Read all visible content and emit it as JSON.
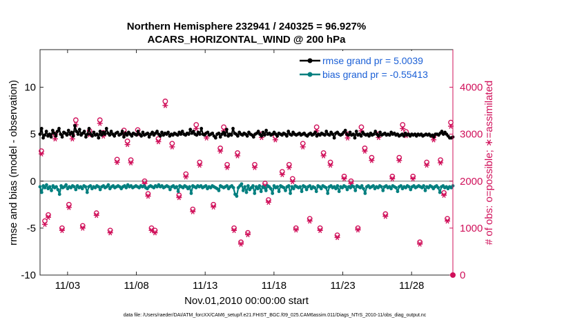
{
  "figure": {
    "title_line1": "Northern Hemisphere 232941 / 240325 = 96.927%",
    "title_line2": "ACARS_HORIZONTAL_WIND @ 200 hPa",
    "xlabel": "Nov.01,2010 00:00:00 start",
    "ylabel_left": "rmse and bias (model - observation)",
    "ylabel_right": "# of obs: o=possible; ∗=assimilated",
    "footer": "data file: /Users/raeder/DAI/ATM_forcXX/CAM6_setup/f.e21.FHIST_BGC.f09_025.CAM6assim.011/Diags_NTrS_2010-11/obs_diag_output.nc"
  },
  "colors": {
    "rmse": "#000000",
    "bias": "#007f7f",
    "obs": "#d0105a",
    "legend_text": "#1a5fd6",
    "zero_line": "#b3b3b3",
    "axis": "#262626"
  },
  "chart_data": {
    "type": "line",
    "x_unit": "days since Nov.01,2010 00:00 (6-hourly samples)",
    "xlim": [
      0.0,
      30.0
    ],
    "ylim_left": [
      -10,
      14
    ],
    "ylim_right": [
      0,
      4800
    ],
    "xticks": [
      2,
      7,
      12,
      17,
      22,
      27
    ],
    "xtick_labels": [
      "11/03",
      "11/08",
      "11/13",
      "11/18",
      "11/23",
      "11/28"
    ],
    "yticks_left": [
      -10,
      -5,
      0,
      5,
      10
    ],
    "yticks_left_labels": [
      "-10",
      "-5",
      "0",
      "5",
      "10"
    ],
    "yticks_right": [
      0,
      1000,
      2000,
      3000,
      4000
    ],
    "yticks_right_labels": [
      "0",
      "1000",
      "2000",
      "3000",
      "4000"
    ],
    "legend_location": "top-right",
    "legend": [
      "rmse grand pr = 5.0039",
      "bias grand pr = -0.55413"
    ],
    "series": [
      {
        "name": "rmse grand pr = 5.0039",
        "axis": "left",
        "marker": "filled-circle",
        "values": [
          5.0,
          5.6,
          4.6,
          4.9,
          5.3,
          4.8,
          5.0,
          4.7,
          5.4,
          5.1,
          4.8,
          5.3,
          5.6,
          5.0,
          4.7,
          5.2,
          5.1,
          4.9,
          5.4,
          5.0,
          5.2,
          4.8,
          5.9,
          5.3,
          5.0,
          5.5,
          4.9,
          5.1,
          5.3,
          4.7,
          5.0,
          5.6,
          5.0,
          4.8,
          5.2,
          4.9,
          5.0,
          4.6,
          5.3,
          4.9,
          5.2,
          5.0,
          5.6,
          5.1,
          4.9,
          5.3,
          5.0,
          4.8,
          5.1,
          5.2,
          4.9,
          5.0,
          5.3,
          4.7,
          5.1,
          4.9,
          5.2,
          5.0,
          4.8,
          5.1,
          5.0,
          4.9,
          5.3,
          5.0,
          4.8,
          5.2,
          4.9,
          5.0,
          5.1,
          4.7,
          5.0,
          5.2,
          4.9,
          5.1,
          5.3,
          5.0,
          4.8,
          5.2,
          4.9,
          5.1,
          5.0,
          5.2,
          4.8,
          5.0,
          4.9,
          5.1,
          5.0,
          4.9,
          5.2,
          5.0,
          5.3,
          5.0,
          4.9,
          5.1,
          5.0,
          5.5,
          5.1,
          5.3,
          5.0,
          4.9,
          5.2,
          5.0,
          5.6,
          5.0,
          4.9,
          5.1,
          5.2,
          4.9,
          5.0,
          5.1,
          4.8,
          4.6,
          5.0,
          5.1,
          4.7,
          5.0,
          5.2,
          4.9,
          5.5,
          4.8,
          5.0,
          4.9,
          5.6,
          5.1,
          5.0,
          4.8,
          5.2,
          5.0,
          4.9,
          5.1,
          5.0,
          4.8,
          5.2,
          5.0,
          4.9,
          4.7,
          5.0,
          5.1,
          5.3,
          5.0,
          4.8,
          5.2,
          4.9,
          5.4,
          5.0,
          5.1,
          4.9,
          5.0,
          5.2,
          5.0,
          4.8,
          5.1,
          5.0,
          4.9,
          5.1,
          5.0,
          4.8,
          5.3,
          5.0,
          4.9,
          5.2,
          5.0,
          4.9,
          5.0,
          5.1,
          4.9,
          5.0,
          5.1,
          4.9,
          4.8,
          5.0,
          5.1,
          4.9,
          5.0,
          5.2,
          4.8,
          5.0,
          4.9,
          5.1,
          5.0,
          4.9,
          5.3,
          5.0,
          4.9,
          5.2,
          5.0,
          4.6,
          5.1,
          5.2,
          5.0,
          4.9,
          5.0,
          5.2,
          5.4,
          5.0,
          4.9,
          5.2,
          4.9,
          5.0,
          4.6,
          5.3,
          4.9,
          5.0,
          4.8,
          5.2,
          5.0,
          4.9,
          5.0,
          4.8,
          5.1,
          4.9,
          5.0,
          5.3,
          5.0,
          4.8,
          5.2,
          4.9,
          5.0,
          5.1,
          4.9,
          5.0,
          4.9,
          5.2,
          5.0,
          5.1,
          4.9,
          5.0,
          4.8,
          4.9,
          5.0,
          4.8,
          5.1,
          4.9,
          5.0,
          4.8,
          5.0,
          4.9,
          5.0,
          4.8,
          5.0,
          4.9,
          5.0,
          4.8,
          4.9,
          5.0,
          4.9,
          5.0,
          4.8,
          4.9,
          4.7,
          5.0,
          5.0,
          4.9,
          5.1,
          5.3,
          5.0,
          5.2,
          5.0,
          4.8,
          4.6,
          4.6,
          4.7
        ]
      },
      {
        "name": "bias grand pr = -0.55413",
        "axis": "left",
        "marker": "filled-circle",
        "values": [
          -0.6,
          -1.2,
          -0.5,
          -0.7,
          -0.4,
          -0.8,
          -0.6,
          -1.0,
          -0.5,
          -0.7,
          -0.6,
          -0.9,
          -1.4,
          -0.5,
          -0.7,
          -0.6,
          -0.4,
          -0.8,
          -0.6,
          -0.7,
          -0.5,
          -0.6,
          -0.9,
          -0.5,
          -0.7,
          -0.6,
          -0.8,
          -0.5,
          -0.6,
          -1.2,
          -0.6,
          -0.5,
          -0.8,
          -0.6,
          -0.7,
          -0.5,
          -0.6,
          -0.9,
          -0.6,
          -0.5,
          -0.7,
          -0.6,
          -0.4,
          -0.8,
          -0.6,
          -0.5,
          -0.7,
          -0.6,
          -0.5,
          -0.6,
          -0.8,
          -0.6,
          -0.5,
          -0.7,
          -0.4,
          -0.6,
          -0.5,
          -0.7,
          -0.6,
          -0.5,
          -0.6,
          -0.7,
          -0.5,
          -0.6,
          -0.5,
          -0.7,
          -0.8,
          -0.6,
          -0.5,
          -0.6,
          -0.7,
          -0.5,
          -0.6,
          -0.4,
          -0.6,
          -0.5,
          -0.7,
          -0.6,
          -0.5,
          -0.6,
          -0.9,
          -0.6,
          -0.5,
          -0.7,
          -0.6,
          -1.1,
          -0.5,
          -0.6,
          -0.7,
          -0.5,
          -0.6,
          -0.8,
          -0.6,
          -1.3,
          -0.5,
          -0.6,
          -0.7,
          -0.5,
          -0.6,
          -0.5,
          -0.7,
          -0.6,
          -0.5,
          -0.8,
          -0.6,
          -0.7,
          -0.5,
          -0.6,
          -0.7,
          -0.8,
          -1.0,
          -0.5,
          -0.6,
          -0.7,
          -0.6,
          -0.5,
          -0.8,
          -0.6,
          -0.5,
          -0.7,
          -1.4,
          -1.6,
          -0.7,
          -0.5,
          -0.3,
          -1.0,
          -0.6,
          -1.2,
          -0.5,
          -0.9,
          -0.7,
          -0.5,
          -1.3,
          -0.6,
          -0.8,
          -0.5,
          -1.1,
          -0.6,
          -0.7,
          -1.0,
          -0.5,
          -0.6,
          -0.8,
          -1.3,
          -0.5,
          -0.7,
          -0.6,
          -1.1,
          -0.5,
          -0.6,
          -0.7,
          -1.0,
          -0.6,
          -0.5,
          -1.3,
          -0.6,
          -0.8,
          -0.5,
          -0.6,
          -0.7,
          -0.6,
          -1.1,
          -0.5,
          -0.6,
          -0.9,
          -0.6,
          -0.5,
          -0.8,
          -0.6,
          -0.7,
          -1.1,
          -0.5,
          -0.6,
          -0.8,
          -0.5,
          -0.6,
          -0.7,
          -1.3,
          -0.6,
          -0.5,
          -0.7,
          -0.6,
          -0.8,
          -0.5,
          -1.1,
          -0.6,
          -0.7,
          -0.5,
          -0.6,
          -0.9,
          -0.6,
          -0.7,
          -0.5,
          -0.6,
          -1.0,
          -0.5,
          -0.6,
          -0.7,
          -0.5,
          -0.8,
          -1.3,
          -0.6,
          -0.5,
          -0.7,
          -0.6,
          -0.5,
          -0.8,
          -0.6,
          -0.7,
          -0.5,
          -0.6,
          -1.0,
          -0.6,
          -0.5,
          -0.7,
          -0.6,
          -0.8,
          -0.5,
          -0.6,
          -0.7,
          -1.1,
          -0.6,
          -0.5,
          -0.8,
          -0.6,
          -0.7,
          -0.5,
          -0.6,
          -0.9,
          -0.6,
          -0.5,
          -0.7,
          -0.6,
          -0.5,
          -0.6,
          -0.7,
          -0.5,
          -1.0,
          -0.6,
          -0.7,
          -0.5,
          -0.6,
          -0.8,
          -0.6,
          -0.5,
          -0.7,
          -1.2,
          -0.6,
          -0.5,
          -0.7,
          -0.6,
          -0.8,
          -0.6,
          -0.7,
          -0.5
        ]
      },
      {
        "name": "# of obs possible",
        "axis": "right",
        "marker": "open-circle",
        "x": [
          0.1,
          0.35,
          0.6,
          1.1,
          1.6,
          2.1,
          2.35,
          2.6,
          3.1,
          3.6,
          4.1,
          4.35,
          4.6,
          5.1,
          5.6,
          6.1,
          6.35,
          6.6,
          7.1,
          7.6,
          7.85,
          8.1,
          8.35,
          8.6,
          9.1,
          9.6,
          10.1,
          10.6,
          11.1,
          11.35,
          11.6,
          12.1,
          12.6,
          13.1,
          13.35,
          13.6,
          14.1,
          14.35,
          14.6,
          15.1,
          15.6,
          16.1,
          16.35,
          16.6,
          17.1,
          17.6,
          18.1,
          18.35,
          18.6,
          19.1,
          19.6,
          20.1,
          20.35,
          20.6,
          21.1,
          21.6,
          22.1,
          22.35,
          22.6,
          23.1,
          23.35,
          23.6,
          24.1,
          24.6,
          25.1,
          25.6,
          26.1,
          26.35,
          26.6,
          27.1,
          27.6,
          28.1,
          28.6,
          29.1,
          29.35,
          29.6,
          29.85
        ],
        "values": [
          2640,
          1150,
          1280,
          3000,
          1000,
          1500,
          2980,
          3300,
          1050,
          3070,
          1320,
          3300,
          3030,
          950,
          2460,
          3080,
          2850,
          2450,
          3090,
          2000,
          1730,
          1000,
          950,
          2900,
          3700,
          2800,
          1700,
          2150,
          1400,
          3200,
          2400,
          3000,
          1500,
          2700,
          3150,
          2350,
          1000,
          2600,
          700,
          900,
          2350,
          3000,
          1950,
          1600,
          2950,
          2200,
          2350,
          2050,
          1000,
          2800,
          1200,
          3150,
          1000,
          2600,
          2400,
          850,
          2100,
          3000,
          2000,
          1000,
          3150,
          2700,
          2500,
          3000,
          1300,
          2100,
          2500,
          3200,
          3050,
          2100,
          700,
          2400,
          2950,
          2450,
          1750,
          1200,
          3250
        ]
      },
      {
        "name": "# of obs assimilated",
        "axis": "right",
        "marker": "asterisk",
        "x": [
          0.1,
          0.35,
          0.6,
          1.1,
          1.6,
          2.1,
          2.35,
          2.6,
          3.1,
          3.6,
          4.1,
          4.35,
          4.6,
          5.1,
          5.6,
          6.1,
          6.35,
          6.6,
          7.1,
          7.6,
          7.85,
          8.1,
          8.35,
          8.6,
          9.1,
          9.6,
          10.1,
          10.6,
          11.1,
          11.35,
          11.6,
          12.1,
          12.6,
          13.1,
          13.35,
          13.6,
          14.1,
          14.35,
          14.6,
          15.1,
          15.6,
          16.1,
          16.35,
          16.6,
          17.1,
          17.6,
          18.1,
          18.35,
          18.6,
          19.1,
          19.6,
          20.1,
          20.35,
          20.6,
          21.1,
          21.6,
          22.1,
          22.35,
          22.6,
          23.1,
          23.35,
          23.6,
          24.1,
          24.6,
          25.1,
          25.6,
          26.1,
          26.35,
          26.6,
          27.1,
          27.6,
          28.1,
          28.6,
          29.1,
          29.35,
          29.6,
          29.85
        ],
        "values": [
          2580,
          1080,
          1230,
          2900,
          950,
          1440,
          2900,
          3200,
          1000,
          2990,
          1270,
          3230,
          2960,
          900,
          2400,
          3020,
          2780,
          2390,
          3010,
          1950,
          1680,
          950,
          900,
          2840,
          3610,
          2730,
          1650,
          2090,
          1350,
          3120,
          2340,
          2920,
          1450,
          2640,
          3070,
          2290,
          950,
          2540,
          660,
          860,
          2290,
          2930,
          1900,
          1550,
          2880,
          2140,
          2290,
          1990,
          960,
          2730,
          1150,
          3070,
          950,
          2540,
          2340,
          800,
          2050,
          2920,
          1950,
          960,
          3070,
          2640,
          2440,
          2930,
          1250,
          2050,
          2440,
          3120,
          2970,
          2050,
          660,
          2340,
          2880,
          2390,
          1700,
          1150,
          3170
        ]
      },
      {
        "name": "# of obs endpoint",
        "axis": "right",
        "marker": "filled-circle",
        "x": [
          30.0
        ],
        "values": [
          0
        ]
      }
    ]
  }
}
